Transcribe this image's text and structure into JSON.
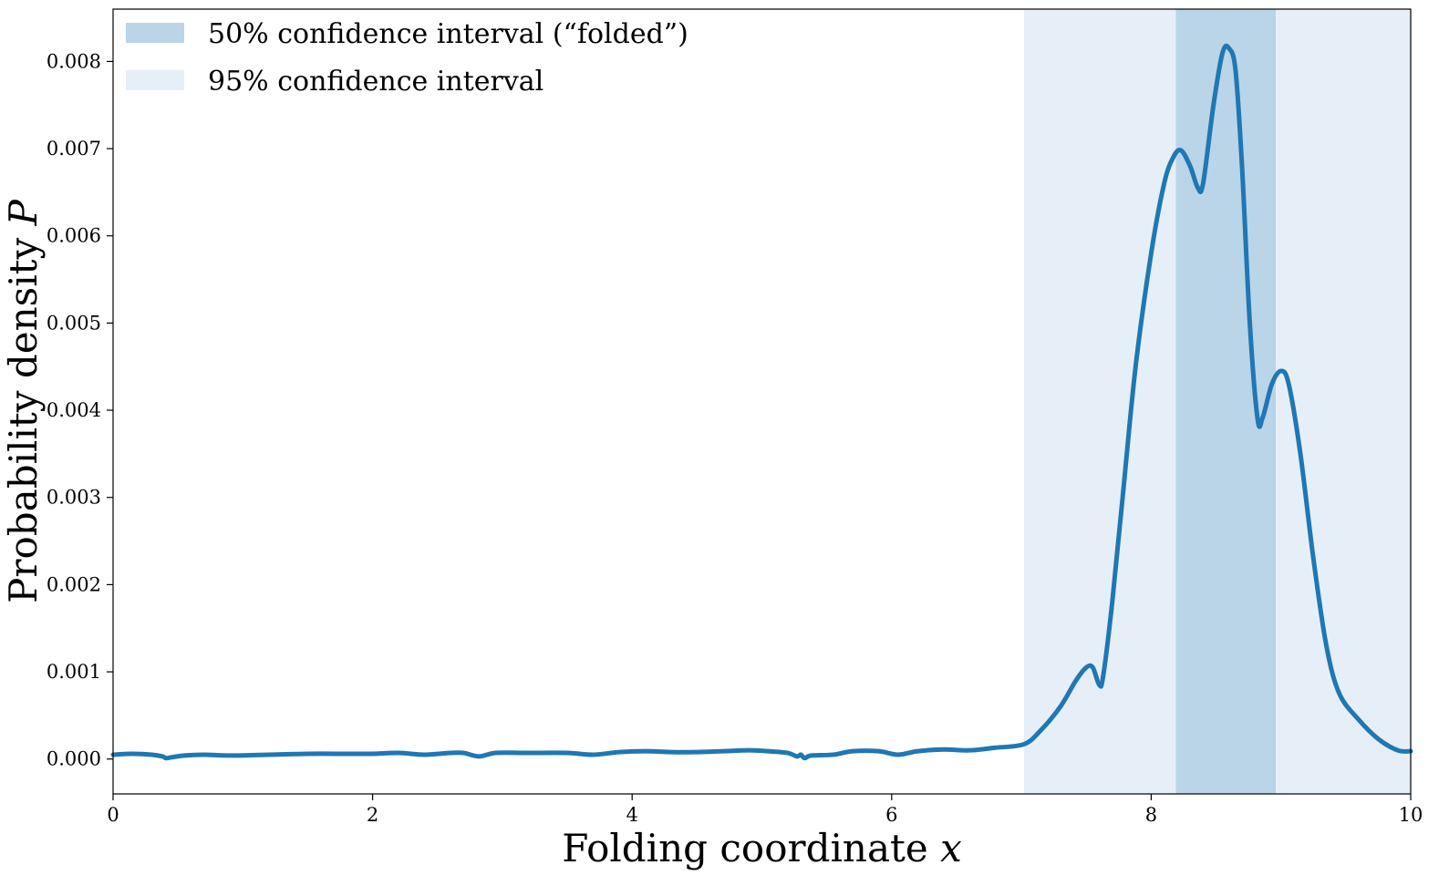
{
  "chart_data": {
    "type": "line",
    "xlabel": "Folding coordinate",
    "xlabel_var": "x",
    "ylabel": "Probability density",
    "ylabel_var": "P",
    "xlim": [
      0,
      10
    ],
    "ylim": [
      -0.0004,
      0.0086
    ],
    "x_ticks": [
      0,
      2,
      4,
      6,
      8,
      10
    ],
    "x_tick_labels": [
      "0",
      "2",
      "4",
      "6",
      "8",
      "10"
    ],
    "y_ticks": [
      0,
      0.001,
      0.002,
      0.003,
      0.004,
      0.005,
      0.006,
      0.007,
      0.008
    ],
    "y_tick_labels": [
      "0.000",
      "0.001",
      "0.002",
      "0.003",
      "0.004",
      "0.005",
      "0.006",
      "0.007",
      "0.008"
    ],
    "grid": false,
    "legend_position": "top-left",
    "bands": [
      {
        "label": "95% confidence interval",
        "x0": 7.02,
        "x1": 10.0,
        "color": "#e6eff8"
      },
      {
        "label": "50% confidence interval (“folded”)",
        "x0": 8.19,
        "x1": 8.96,
        "color": "#bad5e8"
      }
    ],
    "legend": [
      {
        "label": "50% confidence interval (“folded”)",
        "color": "#bad5e8"
      },
      {
        "label": "95% confidence interval",
        "color": "#e6eff8"
      }
    ],
    "series": [
      {
        "color": "#1f77b4",
        "points": [
          [
            0.0,
            5e-05
          ],
          [
            0.15,
            6e-05
          ],
          [
            0.3,
            5e-05
          ],
          [
            0.38,
            3e-05
          ],
          [
            0.41,
            1e-05
          ],
          [
            0.45,
            2e-05
          ],
          [
            0.55,
            4e-05
          ],
          [
            0.7,
            5e-05
          ],
          [
            0.9,
            4e-05
          ],
          [
            1.2,
            5e-05
          ],
          [
            1.5,
            6e-05
          ],
          [
            1.8,
            6e-05
          ],
          [
            2.0,
            6e-05
          ],
          [
            2.2,
            7e-05
          ],
          [
            2.4,
            5e-05
          ],
          [
            2.6,
            7e-05
          ],
          [
            2.7,
            7e-05
          ],
          [
            2.82,
            3e-05
          ],
          [
            2.95,
            7e-05
          ],
          [
            3.2,
            7e-05
          ],
          [
            3.5,
            7e-05
          ],
          [
            3.7,
            5e-05
          ],
          [
            3.9,
            8e-05
          ],
          [
            4.1,
            9e-05
          ],
          [
            4.3,
            8e-05
          ],
          [
            4.5,
            8e-05
          ],
          [
            4.7,
            9e-05
          ],
          [
            4.9,
            0.0001
          ],
          [
            5.05,
            9e-05
          ],
          [
            5.2,
            7e-05
          ],
          [
            5.27,
            3e-05
          ],
          [
            5.3,
            5e-05
          ],
          [
            5.33,
            1e-05
          ],
          [
            5.38,
            4e-05
          ],
          [
            5.55,
            5e-05
          ],
          [
            5.7,
            9e-05
          ],
          [
            5.9,
            9e-05
          ],
          [
            6.05,
            5e-05
          ],
          [
            6.2,
            9e-05
          ],
          [
            6.4,
            0.00011
          ],
          [
            6.6,
            0.0001
          ],
          [
            6.8,
            0.00013
          ],
          [
            7.02,
            0.00017
          ],
          [
            7.15,
            0.00033
          ],
          [
            7.3,
            0.0006
          ],
          [
            7.42,
            0.0009
          ],
          [
            7.5,
            0.00105
          ],
          [
            7.55,
            0.00105
          ],
          [
            7.6,
            0.00085
          ],
          [
            7.63,
            0.00095
          ],
          [
            7.7,
            0.0018
          ],
          [
            7.78,
            0.003
          ],
          [
            7.88,
            0.0045
          ],
          [
            8.0,
            0.0058
          ],
          [
            8.1,
            0.0066
          ],
          [
            8.17,
            0.0069
          ],
          [
            8.23,
            0.00698
          ],
          [
            8.3,
            0.0068
          ],
          [
            8.36,
            0.00655
          ],
          [
            8.4,
            0.0066
          ],
          [
            8.48,
            0.0075
          ],
          [
            8.55,
            0.0081
          ],
          [
            8.6,
            0.00815
          ],
          [
            8.65,
            0.0079
          ],
          [
            8.7,
            0.0068
          ],
          [
            8.76,
            0.005
          ],
          [
            8.82,
            0.0039
          ],
          [
            8.86,
            0.00392
          ],
          [
            8.93,
            0.0043
          ],
          [
            9.0,
            0.00445
          ],
          [
            9.06,
            0.0043
          ],
          [
            9.15,
            0.0035
          ],
          [
            9.25,
            0.0023
          ],
          [
            9.35,
            0.0013
          ],
          [
            9.45,
            0.00075
          ],
          [
            9.6,
            0.00045
          ],
          [
            9.75,
            0.00023
          ],
          [
            9.9,
            0.0001
          ],
          [
            10.0,
            9e-05
          ]
        ]
      }
    ]
  }
}
